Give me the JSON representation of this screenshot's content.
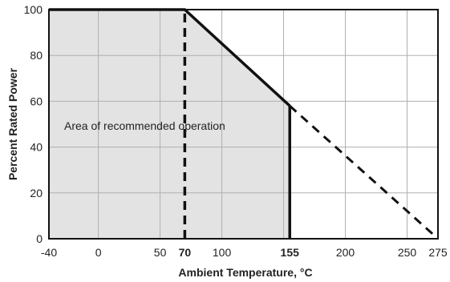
{
  "chart_data": {
    "type": "line",
    "xlabel": "Ambient Temperature, °C",
    "ylabel": "Percent Rated Power",
    "xlim": [
      -40,
      275
    ],
    "ylim": [
      0,
      100
    ],
    "x_ticks": [
      {
        "value": -40,
        "label": "-40",
        "bold": false
      },
      {
        "value": 0,
        "label": "0",
        "bold": false
      },
      {
        "value": 50,
        "label": "50",
        "bold": false
      },
      {
        "value": 70,
        "label": "70",
        "bold": true
      },
      {
        "value": 100,
        "label": "100",
        "bold": false
      },
      {
        "value": 155,
        "label": "155",
        "bold": true
      },
      {
        "value": 200,
        "label": "200",
        "bold": false
      },
      {
        "value": 250,
        "label": "250",
        "bold": false
      },
      {
        "value": 275,
        "label": "275",
        "bold": false
      }
    ],
    "x_gridlines": [
      0,
      50,
      100,
      150,
      200,
      250
    ],
    "y_ticks": [
      {
        "value": 0,
        "label": "0"
      },
      {
        "value": 20,
        "label": "20"
      },
      {
        "value": 40,
        "label": "40"
      },
      {
        "value": 60,
        "label": "60"
      },
      {
        "value": 80,
        "label": "80"
      },
      {
        "value": 100,
        "label": "100"
      }
    ],
    "grid": true,
    "derating_curve": {
      "solid": {
        "x": [
          -40,
          70,
          155
        ],
        "y": [
          100,
          100,
          58
        ]
      },
      "dashed_extension": {
        "x": [
          155,
          275
        ],
        "y": [
          58,
          0
        ]
      }
    },
    "reference_lines": [
      {
        "x": 70,
        "style": "dashed",
        "y_from": 0,
        "y_to": 100
      },
      {
        "x": 155,
        "style": "solid",
        "y_from": 0,
        "y_to": 58
      }
    ],
    "shaded_region": {
      "label": "Area of recommended operation",
      "x": [
        -40,
        70,
        155,
        155,
        -40
      ],
      "y": [
        100,
        100,
        58,
        0,
        0
      ],
      "color": "#e3e3e3"
    },
    "colors": {
      "line": "#111111",
      "grid": "#b0b0b0",
      "axis": "#111111",
      "shade": "#e3e3e3"
    }
  }
}
